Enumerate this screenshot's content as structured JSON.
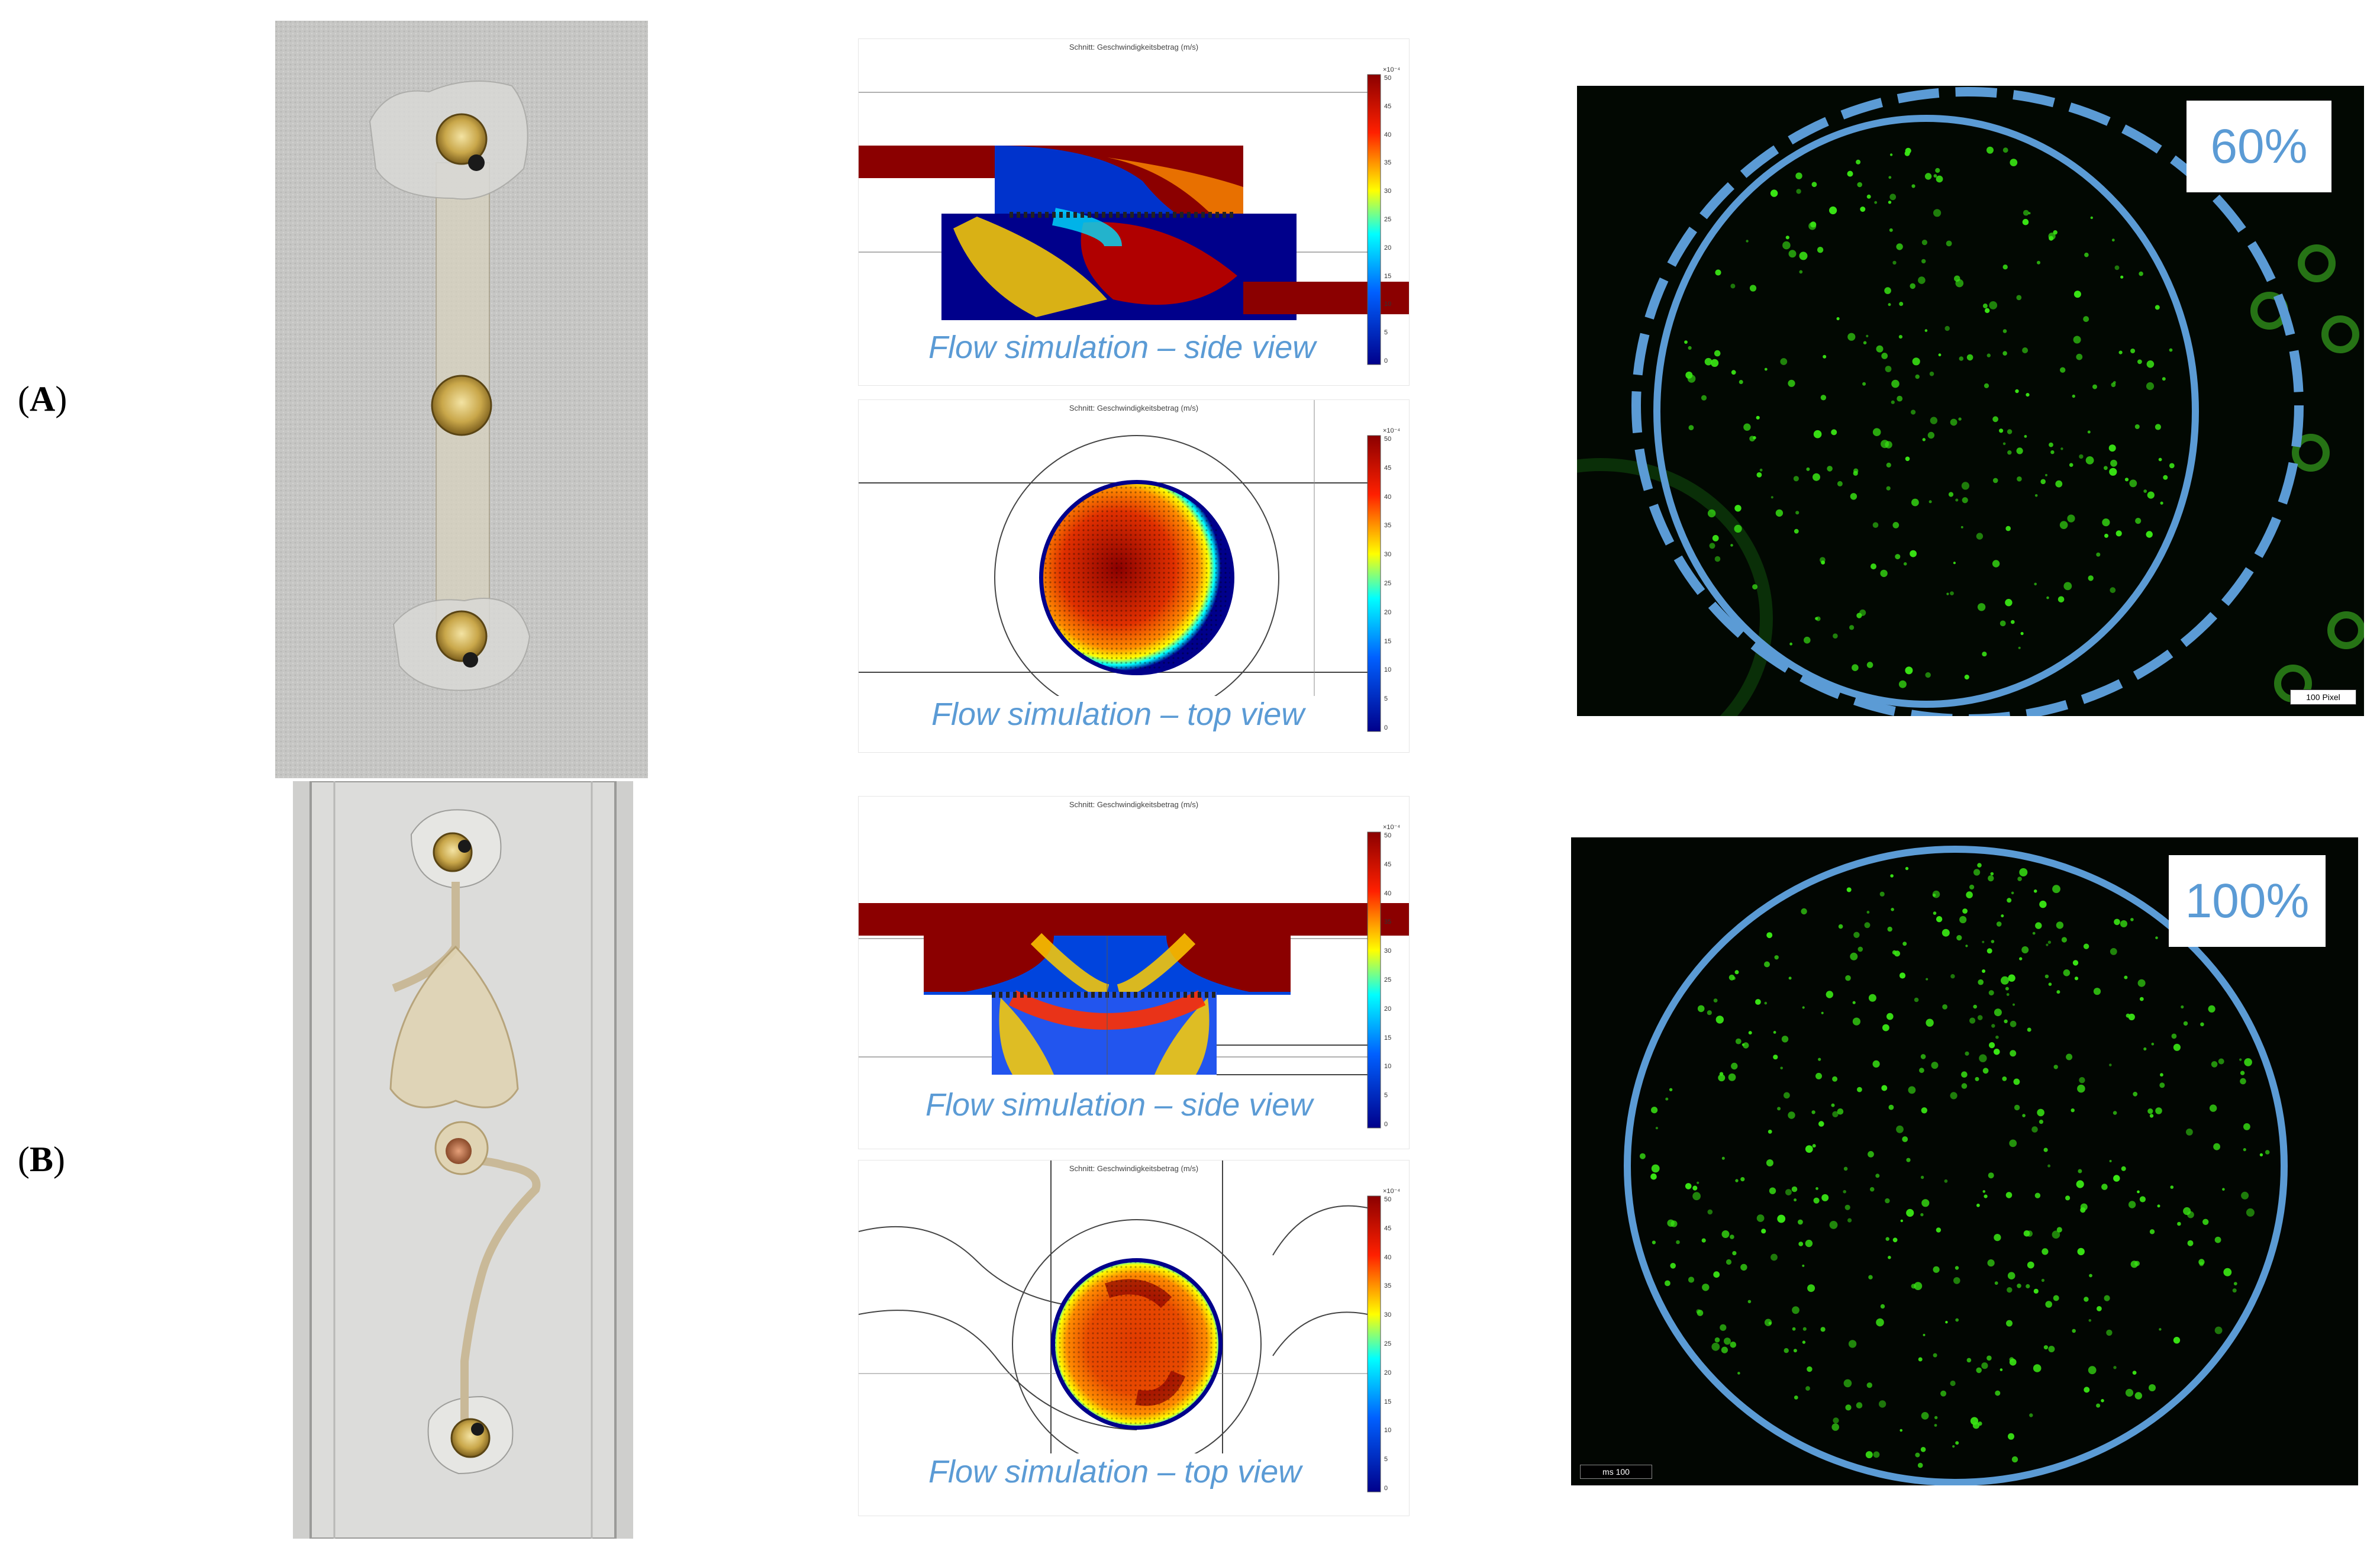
{
  "rows": [
    {
      "label_open": "(",
      "label_letter": "A",
      "label_close": ")",
      "sim_title": "Schnitt: Geschwindigkeitsbetrag (m/s)",
      "side_caption": "Flow simulation – side view",
      "top_caption": "Flow simulation – top view",
      "colorbar_exp": "×10⁻⁴",
      "colorbar_ticks": [
        "50",
        "45",
        "40",
        "35",
        "30",
        "25",
        "20",
        "15",
        "10",
        "5",
        "0"
      ],
      "percentage": "60%",
      "scale_label": "100 Pixel"
    },
    {
      "label_open": "(",
      "label_letter": "B",
      "label_close": ")",
      "sim_title": "Schnitt: Geschwindigkeitsbetrag (m/s)",
      "side_caption": "Flow simulation – side view",
      "top_caption": "Flow simulation – top view",
      "colorbar_exp": "×10⁻⁴",
      "colorbar_ticks": [
        "50",
        "45",
        "40",
        "35",
        "30",
        "25",
        "20",
        "15",
        "10",
        "5",
        "0"
      ],
      "percentage": "100%",
      "scale_label": "ms 100"
    }
  ],
  "colors": {
    "annotation_blue": "#5b9bd5",
    "fluorescence_green": "#39e614",
    "flow_high": "#8b0000",
    "flow_low": "#00008b"
  }
}
